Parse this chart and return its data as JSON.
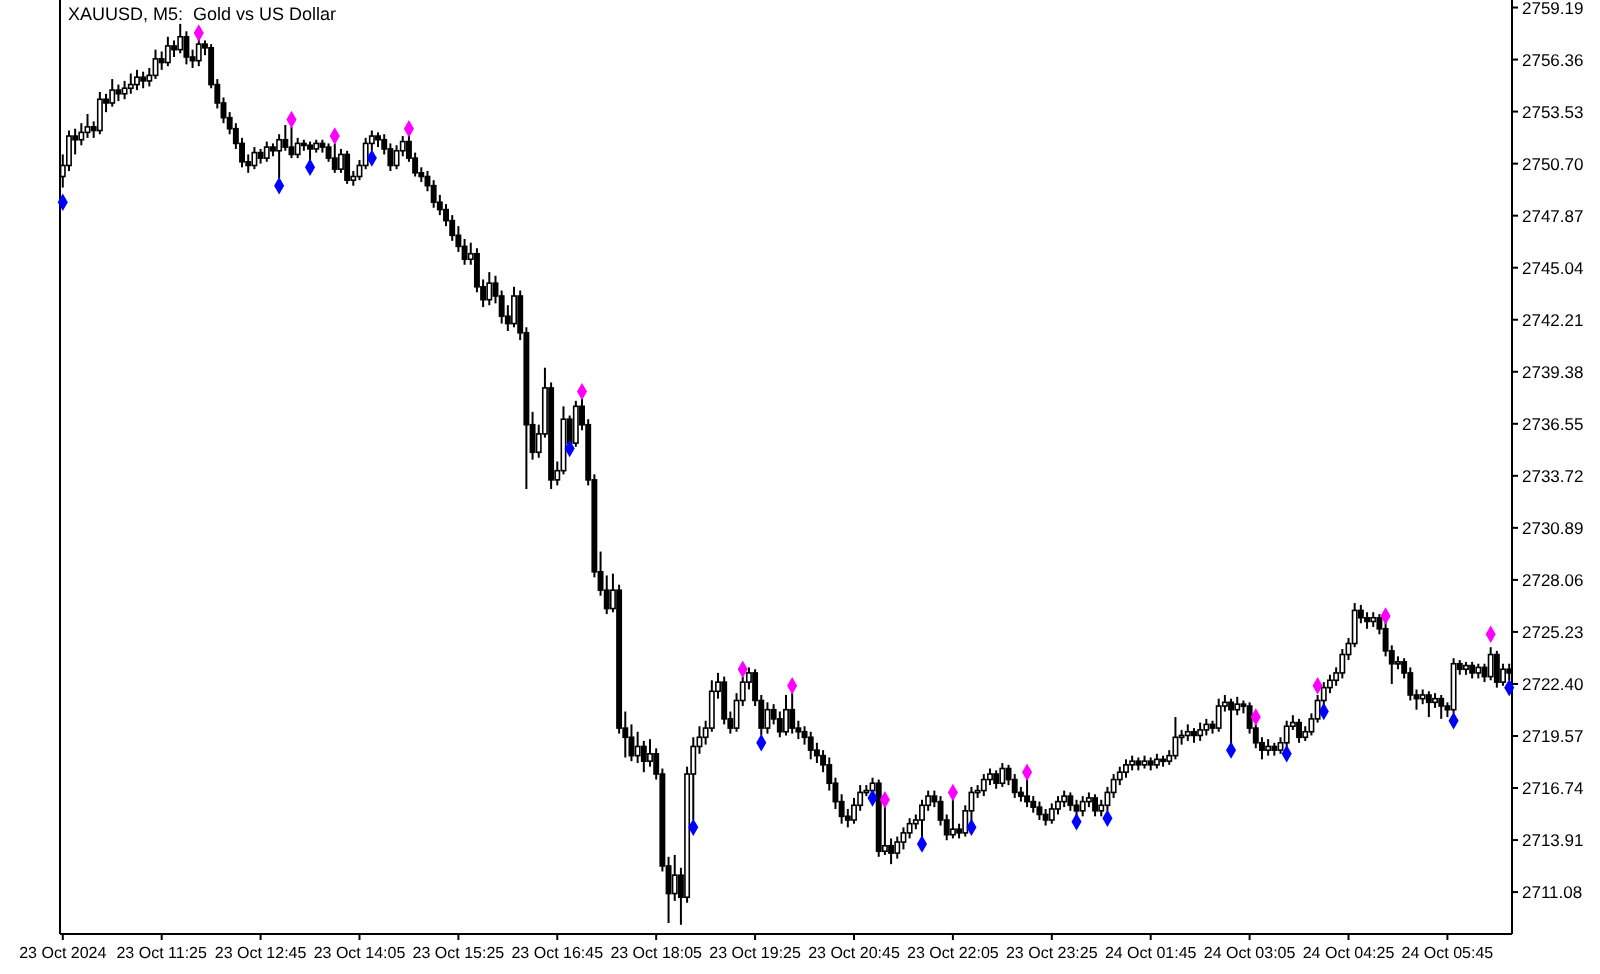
{
  "chart_data": {
    "type": "candlestick",
    "title": "XAUUSD, M5:  Gold vs US Dollar",
    "marker": "diamond",
    "categories": [
      "23 Oct 2024",
      null,
      null,
      null,
      null,
      null,
      null,
      null,
      null,
      null,
      null,
      null,
      null,
      null,
      null,
      null,
      "23 Oct 11:25",
      null,
      null,
      null,
      null,
      null,
      null,
      null,
      null,
      null,
      null,
      null,
      null,
      null,
      null,
      null,
      "23 Oct 12:45",
      null,
      null,
      null,
      null,
      null,
      null,
      null,
      null,
      null,
      null,
      null,
      null,
      null,
      null,
      null,
      "23 Oct 14:05",
      null,
      null,
      null,
      null,
      null,
      null,
      null,
      null,
      null,
      null,
      null,
      null,
      null,
      null,
      null,
      "23 Oct 15:25",
      null,
      null,
      null,
      null,
      null,
      null,
      null,
      null,
      null,
      null,
      null,
      null,
      null,
      null,
      null,
      "23 Oct 16:45",
      null,
      null,
      null,
      null,
      null,
      null,
      null,
      null,
      null,
      null,
      null,
      null,
      null,
      null,
      null,
      "23 Oct 18:05",
      null,
      null,
      null,
      null,
      null,
      null,
      null,
      null,
      null,
      null,
      null,
      null,
      null,
      null,
      null,
      "23 Oct 19:25",
      null,
      null,
      null,
      null,
      null,
      null,
      null,
      null,
      null,
      null,
      null,
      null,
      null,
      null,
      null,
      "23 Oct 20:45",
      null,
      null,
      null,
      null,
      null,
      null,
      null,
      null,
      null,
      null,
      null,
      null,
      null,
      null,
      null,
      "23 Oct 22:05",
      null,
      null,
      null,
      null,
      null,
      null,
      null,
      null,
      null,
      null,
      null,
      null,
      null,
      null,
      null,
      "23 Oct 23:25",
      null,
      null,
      null,
      null,
      null,
      null,
      null,
      null,
      null,
      null,
      null,
      null,
      null,
      null,
      null,
      "24 Oct 01:45",
      null,
      null,
      null,
      null,
      null,
      null,
      null,
      null,
      null,
      null,
      null,
      null,
      null,
      null,
      null,
      "24 Oct 03:05",
      null,
      null,
      null,
      null,
      null,
      null,
      null,
      null,
      null,
      null,
      null,
      null,
      null,
      null,
      null,
      "24 Oct 04:25",
      null,
      null,
      null,
      null,
      null,
      null,
      null,
      null,
      null,
      null,
      null,
      null,
      null,
      null,
      null,
      "24 Oct 05:45",
      null,
      null,
      null,
      null,
      null,
      null,
      null,
      null,
      null,
      null
    ],
    "ohlc": [
      [
        2750.0,
        2751.2,
        2749.4,
        2750.6
      ],
      [
        2750.6,
        2752.5,
        2750.3,
        2752.2
      ],
      [
        2752.2,
        2752.6,
        2751.2,
        2752.0
      ],
      [
        2752.0,
        2752.9,
        2751.7,
        2752.4
      ],
      [
        2752.4,
        2753.4,
        2752.1,
        2752.7
      ],
      [
        2752.7,
        2753.0,
        2752.1,
        2752.5
      ],
      [
        2752.5,
        2754.6,
        2752.3,
        2754.2
      ],
      [
        2754.2,
        2754.5,
        2753.5,
        2754.0
      ],
      [
        2754.0,
        2755.3,
        2753.8,
        2754.7
      ],
      [
        2754.7,
        2755.0,
        2754.1,
        2754.5
      ],
      [
        2754.5,
        2755.2,
        2754.2,
        2754.8
      ],
      [
        2754.8,
        2755.6,
        2754.5,
        2755.0
      ],
      [
        2755.0,
        2755.8,
        2754.7,
        2755.4
      ],
      [
        2755.4,
        2755.7,
        2754.8,
        2755.2
      ],
      [
        2755.2,
        2755.9,
        2754.9,
        2755.5
      ],
      [
        2755.5,
        2756.9,
        2755.3,
        2756.4
      ],
      [
        2756.4,
        2756.8,
        2755.8,
        2756.2
      ],
      [
        2756.2,
        2757.6,
        2756.0,
        2757.1
      ],
      [
        2757.1,
        2757.4,
        2756.5,
        2756.9
      ],
      [
        2756.9,
        2758.3,
        2756.7,
        2757.6
      ],
      [
        2757.6,
        2757.9,
        2756.1,
        2756.5
      ],
      [
        2756.5,
        2756.9,
        2755.9,
        2756.3
      ],
      [
        2756.3,
        2757.5,
        2756.0,
        2757.2
      ],
      [
        2757.2,
        2757.4,
        2756.6,
        2757.0
      ],
      [
        2757.0,
        2757.2,
        2754.8,
        2755.0
      ],
      [
        2755.0,
        2755.3,
        2753.7,
        2754.0
      ],
      [
        2754.0,
        2754.3,
        2752.9,
        2753.2
      ],
      [
        2753.2,
        2753.5,
        2752.3,
        2752.6
      ],
      [
        2752.6,
        2752.9,
        2751.5,
        2751.8
      ],
      [
        2751.8,
        2752.1,
        2750.5,
        2750.8
      ],
      [
        2750.8,
        2751.2,
        2750.2,
        2750.6
      ],
      [
        2750.6,
        2751.6,
        2750.4,
        2751.3
      ],
      [
        2751.3,
        2751.5,
        2750.7,
        2751.0
      ],
      [
        2751.0,
        2751.9,
        2750.8,
        2751.6
      ],
      [
        2751.6,
        2751.8,
        2751.1,
        2751.4
      ],
      [
        2751.4,
        2752.3,
        2749.9,
        2752.0
      ],
      [
        2752.0,
        2752.8,
        2751.4,
        2751.6
      ],
      [
        2751.6,
        2752.7,
        2751.0,
        2751.2
      ],
      [
        2751.2,
        2752.1,
        2751.0,
        2751.8
      ],
      [
        2751.8,
        2752.0,
        2751.4,
        2751.7
      ],
      [
        2751.7,
        2751.9,
        2750.9,
        2751.5
      ],
      [
        2751.5,
        2752.0,
        2751.3,
        2751.8
      ],
      [
        2751.8,
        2752.0,
        2751.3,
        2751.6
      ],
      [
        2751.6,
        2751.8,
        2750.8,
        2751.0
      ],
      [
        2751.0,
        2751.8,
        2750.2,
        2750.4
      ],
      [
        2750.4,
        2751.5,
        2750.2,
        2751.2
      ],
      [
        2751.2,
        2751.4,
        2749.6,
        2749.8
      ],
      [
        2749.8,
        2750.3,
        2749.5,
        2750.0
      ],
      [
        2750.0,
        2750.9,
        2749.8,
        2750.6
      ],
      [
        2750.6,
        2752.1,
        2750.4,
        2751.8
      ],
      [
        2751.8,
        2752.5,
        2751.4,
        2752.2
      ],
      [
        2752.2,
        2752.4,
        2751.6,
        2752.0
      ],
      [
        2752.0,
        2752.3,
        2751.2,
        2751.5
      ],
      [
        2751.5,
        2751.8,
        2750.3,
        2750.6
      ],
      [
        2750.6,
        2751.7,
        2750.4,
        2751.4
      ],
      [
        2751.4,
        2752.2,
        2751.1,
        2751.9
      ],
      [
        2751.9,
        2752.3,
        2750.8,
        2751.0
      ],
      [
        2751.0,
        2751.3,
        2750.0,
        2750.2
      ],
      [
        2750.2,
        2750.5,
        2749.7,
        2750.0
      ],
      [
        2750.0,
        2750.3,
        2749.2,
        2749.5
      ],
      [
        2749.5,
        2749.8,
        2748.3,
        2748.6
      ],
      [
        2748.6,
        2749.0,
        2747.9,
        2748.2
      ],
      [
        2748.2,
        2748.5,
        2747.3,
        2747.6
      ],
      [
        2747.6,
        2747.9,
        2746.5,
        2746.8
      ],
      [
        2746.8,
        2747.3,
        2745.9,
        2746.2
      ],
      [
        2746.2,
        2746.6,
        2745.2,
        2745.5
      ],
      [
        2745.5,
        2746.4,
        2745.2,
        2745.8
      ],
      [
        2745.8,
        2746.1,
        2743.7,
        2744.0
      ],
      [
        2744.0,
        2744.4,
        2742.9,
        2743.3
      ],
      [
        2743.3,
        2744.8,
        2743.0,
        2744.2
      ],
      [
        2744.2,
        2744.6,
        2743.1,
        2743.5
      ],
      [
        2743.5,
        2743.8,
        2742.0,
        2742.4
      ],
      [
        2742.4,
        2743.0,
        2741.6,
        2742.0
      ],
      [
        2742.0,
        2744.0,
        2741.8,
        2743.5
      ],
      [
        2743.5,
        2743.8,
        2741.1,
        2741.5
      ],
      [
        2741.5,
        2741.8,
        2733.0,
        2736.5
      ],
      [
        2736.5,
        2737.2,
        2734.6,
        2735.0
      ],
      [
        2735.0,
        2736.5,
        2734.7,
        2736.0
      ],
      [
        2736.0,
        2739.6,
        2735.8,
        2738.5
      ],
      [
        2738.5,
        2738.8,
        2733.0,
        2733.5
      ],
      [
        2733.5,
        2734.5,
        2733.2,
        2734.0
      ],
      [
        2734.0,
        2737.5,
        2733.8,
        2736.8
      ],
      [
        2736.8,
        2737.0,
        2735.4,
        2735.5
      ],
      [
        2735.5,
        2737.8,
        2735.3,
        2737.5
      ],
      [
        2737.5,
        2737.9,
        2736.2,
        2736.5
      ],
      [
        2736.5,
        2736.8,
        2733.2,
        2733.5
      ],
      [
        2733.5,
        2733.8,
        2728.2,
        2728.5
      ],
      [
        2728.5,
        2729.6,
        2727.2,
        2727.5
      ],
      [
        2727.5,
        2728.3,
        2726.2,
        2726.5
      ],
      [
        2726.5,
        2728.4,
        2726.3,
        2727.5
      ],
      [
        2727.5,
        2727.8,
        2719.7,
        2720.0
      ],
      [
        2720.0,
        2720.9,
        2718.4,
        2719.5
      ],
      [
        2719.5,
        2720.2,
        2718.2,
        2718.5
      ],
      [
        2718.5,
        2719.8,
        2718.1,
        2719.0
      ],
      [
        2719.0,
        2719.3,
        2717.6,
        2718.2
      ],
      [
        2718.2,
        2719.4,
        2717.9,
        2718.6
      ],
      [
        2718.6,
        2718.9,
        2717.2,
        2717.5
      ],
      [
        2717.5,
        2717.8,
        2712.2,
        2712.5
      ],
      [
        2712.5,
        2713.0,
        2709.4,
        2711.0
      ],
      [
        2711.0,
        2713.1,
        2710.6,
        2712.0
      ],
      [
        2712.0,
        2712.4,
        2709.3,
        2710.8
      ],
      [
        2710.8,
        2717.9,
        2710.5,
        2717.5
      ],
      [
        2717.5,
        2719.5,
        2715.0,
        2719.0
      ],
      [
        2719.0,
        2720.1,
        2718.6,
        2719.5
      ],
      [
        2719.5,
        2720.4,
        2719.1,
        2720.0
      ],
      [
        2720.0,
        2722.6,
        2719.8,
        2722.0
      ],
      [
        2722.0,
        2723.0,
        2721.6,
        2722.5
      ],
      [
        2722.5,
        2722.8,
        2720.2,
        2720.5
      ],
      [
        2720.5,
        2720.9,
        2719.7,
        2720.0
      ],
      [
        2720.0,
        2721.9,
        2719.8,
        2721.5
      ],
      [
        2721.5,
        2722.8,
        2721.2,
        2722.5
      ],
      [
        2722.5,
        2723.3,
        2722.1,
        2723.0
      ],
      [
        2723.0,
        2723.2,
        2721.2,
        2721.5
      ],
      [
        2721.5,
        2721.8,
        2719.6,
        2720.0
      ],
      [
        2720.0,
        2721.4,
        2719.7,
        2721.0
      ],
      [
        2721.0,
        2721.3,
        2720.2,
        2720.5
      ],
      [
        2720.5,
        2720.9,
        2719.5,
        2719.8
      ],
      [
        2719.8,
        2721.8,
        2719.6,
        2721.0
      ],
      [
        2721.0,
        2721.9,
        2719.7,
        2720.0
      ],
      [
        2720.0,
        2720.4,
        2719.4,
        2719.8
      ],
      [
        2719.8,
        2720.1,
        2719.1,
        2719.5
      ],
      [
        2719.5,
        2719.8,
        2718.3,
        2718.8
      ],
      [
        2718.8,
        2719.2,
        2718.1,
        2718.5
      ],
      [
        2718.5,
        2718.8,
        2717.6,
        2718.0
      ],
      [
        2718.0,
        2718.4,
        2716.6,
        2717.0
      ],
      [
        2717.0,
        2717.3,
        2715.6,
        2716.0
      ],
      [
        2716.0,
        2716.4,
        2714.8,
        2715.2
      ],
      [
        2715.2,
        2715.6,
        2714.6,
        2715.0
      ],
      [
        2715.0,
        2716.2,
        2714.8,
        2715.8
      ],
      [
        2715.8,
        2716.9,
        2715.5,
        2716.5
      ],
      [
        2716.5,
        2716.9,
        2716.3,
        2716.6
      ],
      [
        2716.6,
        2717.3,
        2716.4,
        2717.0
      ],
      [
        2717.0,
        2717.2,
        2713.0,
        2713.3
      ],
      [
        2713.3,
        2715.9,
        2713.1,
        2713.6
      ],
      [
        2713.6,
        2714.0,
        2712.6,
        2713.2
      ],
      [
        2713.2,
        2714.1,
        2712.9,
        2713.8
      ],
      [
        2713.8,
        2714.6,
        2713.4,
        2714.3
      ],
      [
        2714.3,
        2715.1,
        2714.0,
        2714.8
      ],
      [
        2714.8,
        2715.3,
        2714.5,
        2715.0
      ],
      [
        2715.0,
        2716.1,
        2714.0,
        2715.8
      ],
      [
        2715.8,
        2716.6,
        2715.5,
        2716.3
      ],
      [
        2716.3,
        2716.6,
        2715.7,
        2716.0
      ],
      [
        2716.0,
        2716.3,
        2714.7,
        2715.0
      ],
      [
        2715.0,
        2715.3,
        2713.9,
        2714.2
      ],
      [
        2714.2,
        2716.2,
        2714.0,
        2714.5
      ],
      [
        2714.5,
        2714.8,
        2714.0,
        2714.3
      ],
      [
        2714.3,
        2715.8,
        2714.1,
        2715.5
      ],
      [
        2715.5,
        2716.8,
        2714.9,
        2716.5
      ],
      [
        2716.5,
        2716.9,
        2716.2,
        2716.6
      ],
      [
        2716.6,
        2717.5,
        2716.3,
        2717.2
      ],
      [
        2717.2,
        2717.8,
        2716.9,
        2717.5
      ],
      [
        2717.5,
        2717.7,
        2716.7,
        2717.0
      ],
      [
        2717.0,
        2718.1,
        2716.8,
        2717.8
      ],
      [
        2717.8,
        2718.0,
        2716.9,
        2717.2
      ],
      [
        2717.2,
        2717.5,
        2716.2,
        2716.5
      ],
      [
        2716.5,
        2716.8,
        2716.0,
        2716.3
      ],
      [
        2716.3,
        2717.3,
        2715.7,
        2716.0
      ],
      [
        2716.0,
        2716.3,
        2715.4,
        2715.7
      ],
      [
        2715.7,
        2716.0,
        2715.0,
        2715.3
      ],
      [
        2715.3,
        2715.6,
        2714.7,
        2715.0
      ],
      [
        2715.0,
        2715.9,
        2714.8,
        2715.6
      ],
      [
        2715.6,
        2716.3,
        2715.3,
        2716.0
      ],
      [
        2716.0,
        2716.6,
        2715.7,
        2716.3
      ],
      [
        2716.3,
        2716.5,
        2715.5,
        2715.8
      ],
      [
        2715.8,
        2716.1,
        2715.2,
        2715.5
      ],
      [
        2715.5,
        2716.3,
        2715.2,
        2716.0
      ],
      [
        2716.0,
        2716.5,
        2715.7,
        2716.2
      ],
      [
        2716.2,
        2716.4,
        2715.2,
        2715.5
      ],
      [
        2715.5,
        2716.1,
        2715.2,
        2715.8
      ],
      [
        2715.8,
        2716.8,
        2715.5,
        2716.5
      ],
      [
        2716.5,
        2717.5,
        2716.2,
        2717.2
      ],
      [
        2717.2,
        2717.9,
        2716.9,
        2717.6
      ],
      [
        2717.6,
        2718.3,
        2717.3,
        2718.0
      ],
      [
        2718.0,
        2718.5,
        2717.7,
        2718.2
      ],
      [
        2718.2,
        2718.4,
        2717.7,
        2718.0
      ],
      [
        2718.0,
        2718.5,
        2717.8,
        2718.2
      ],
      [
        2718.2,
        2718.4,
        2717.7,
        2718.0
      ],
      [
        2718.0,
        2718.6,
        2717.8,
        2718.3
      ],
      [
        2718.3,
        2718.5,
        2717.9,
        2718.2
      ],
      [
        2718.2,
        2718.8,
        2718.0,
        2718.5
      ],
      [
        2718.5,
        2720.6,
        2718.3,
        2719.5
      ],
      [
        2719.5,
        2719.9,
        2719.1,
        2719.6
      ],
      [
        2719.6,
        2720.2,
        2719.3,
        2719.8
      ],
      [
        2719.8,
        2720.0,
        2719.2,
        2719.6
      ],
      [
        2719.6,
        2720.3,
        2719.3,
        2719.9
      ],
      [
        2719.9,
        2720.5,
        2719.6,
        2720.2
      ],
      [
        2720.2,
        2720.4,
        2719.7,
        2720.0
      ],
      [
        2720.0,
        2721.6,
        2719.8,
        2721.2
      ],
      [
        2721.2,
        2721.8,
        2720.9,
        2721.4
      ],
      [
        2721.4,
        2721.6,
        2719.1,
        2721.0
      ],
      [
        2721.0,
        2721.7,
        2720.7,
        2721.3
      ],
      [
        2721.3,
        2721.5,
        2720.8,
        2721.2
      ],
      [
        2721.2,
        2721.4,
        2719.7,
        2720.0
      ],
      [
        2720.0,
        2720.2,
        2718.9,
        2719.2
      ],
      [
        2719.2,
        2719.5,
        2718.3,
        2718.8
      ],
      [
        2718.8,
        2719.4,
        2718.5,
        2719.0
      ],
      [
        2719.0,
        2719.2,
        2718.5,
        2718.8
      ],
      [
        2718.8,
        2719.5,
        2718.6,
        2719.2
      ],
      [
        2719.2,
        2720.4,
        2718.9,
        2720.1
      ],
      [
        2720.1,
        2720.7,
        2719.9,
        2720.3
      ],
      [
        2720.3,
        2720.5,
        2719.2,
        2719.5
      ],
      [
        2719.5,
        2720.1,
        2719.3,
        2719.8
      ],
      [
        2719.8,
        2720.8,
        2719.6,
        2720.5
      ],
      [
        2720.5,
        2721.8,
        2720.3,
        2721.5
      ],
      [
        2721.5,
        2722.5,
        2721.2,
        2722.2
      ],
      [
        2722.2,
        2722.9,
        2721.9,
        2722.6
      ],
      [
        2722.6,
        2723.3,
        2722.3,
        2723.0
      ],
      [
        2723.0,
        2724.3,
        2722.7,
        2724.0
      ],
      [
        2724.0,
        2724.9,
        2723.7,
        2724.6
      ],
      [
        2724.6,
        2726.8,
        2724.4,
        2726.4
      ],
      [
        2726.4,
        2726.7,
        2725.7,
        2726.0
      ],
      [
        2726.0,
        2726.3,
        2725.4,
        2725.8
      ],
      [
        2725.8,
        2726.3,
        2725.5,
        2726.0
      ],
      [
        2726.0,
        2726.2,
        2725.1,
        2725.4
      ],
      [
        2725.4,
        2725.8,
        2723.9,
        2724.2
      ],
      [
        2724.2,
        2724.5,
        2722.4,
        2723.5
      ],
      [
        2723.5,
        2723.9,
        2723.2,
        2723.6
      ],
      [
        2723.6,
        2723.8,
        2722.7,
        2723.0
      ],
      [
        2723.0,
        2723.3,
        2721.5,
        2721.8
      ],
      [
        2721.8,
        2722.1,
        2721.0,
        2721.6
      ],
      [
        2721.6,
        2722.1,
        2721.3,
        2721.8
      ],
      [
        2721.8,
        2722.0,
        2720.6,
        2721.4
      ],
      [
        2721.4,
        2721.9,
        2721.1,
        2721.6
      ],
      [
        2721.6,
        2721.8,
        2720.5,
        2721.2
      ],
      [
        2721.2,
        2721.4,
        2720.6,
        2721.0
      ],
      [
        2721.0,
        2723.8,
        2720.8,
        2723.5
      ],
      [
        2723.5,
        2723.7,
        2722.9,
        2723.2
      ],
      [
        2723.2,
        2723.6,
        2722.9,
        2723.4
      ],
      [
        2723.4,
        2723.6,
        2722.7,
        2723.0
      ],
      [
        2723.0,
        2723.5,
        2722.7,
        2723.3
      ],
      [
        2723.3,
        2723.5,
        2722.5,
        2722.8
      ],
      [
        2722.8,
        2724.4,
        2722.6,
        2724.0
      ],
      [
        2724.0,
        2724.2,
        2722.2,
        2722.5
      ],
      [
        2722.5,
        2723.5,
        2722.3,
        2723.2
      ],
      [
        2723.2,
        2723.5,
        2722.6,
        2723.0
      ]
    ],
    "series": [
      {
        "type": "scatter",
        "color": "#ff00ff",
        "values": [
          null,
          null,
          null,
          null,
          null,
          null,
          null,
          null,
          null,
          null,
          null,
          null,
          null,
          null,
          null,
          null,
          null,
          null,
          null,
          null,
          null,
          null,
          2757.8,
          null,
          null,
          null,
          null,
          null,
          null,
          null,
          null,
          null,
          null,
          null,
          null,
          null,
          null,
          2753.1,
          null,
          null,
          null,
          null,
          null,
          null,
          2752.2,
          null,
          null,
          null,
          null,
          null,
          null,
          null,
          null,
          null,
          null,
          null,
          2752.6,
          null,
          null,
          null,
          null,
          null,
          null,
          null,
          null,
          null,
          null,
          null,
          null,
          null,
          null,
          null,
          null,
          null,
          null,
          null,
          null,
          null,
          null,
          null,
          null,
          null,
          null,
          null,
          2738.3,
          null,
          null,
          null,
          null,
          null,
          null,
          null,
          null,
          null,
          null,
          null,
          null,
          null,
          null,
          null,
          null,
          null,
          null,
          null,
          null,
          null,
          null,
          null,
          null,
          null,
          2723.2,
          null,
          null,
          null,
          null,
          null,
          null,
          null,
          2722.3,
          null,
          null,
          null,
          null,
          null,
          null,
          null,
          null,
          null,
          null,
          null,
          null,
          null,
          null,
          2716.1,
          null,
          null,
          null,
          null,
          null,
          null,
          null,
          null,
          null,
          null,
          2716.5,
          null,
          null,
          null,
          null,
          null,
          null,
          null,
          null,
          null,
          null,
          null,
          2717.6,
          null,
          null,
          null,
          null,
          null,
          null,
          null,
          null,
          null,
          null,
          null,
          null,
          null,
          null,
          null,
          null,
          null,
          null,
          null,
          null,
          null,
          null,
          null,
          null,
          null,
          null,
          null,
          null,
          null,
          null,
          null,
          null,
          null,
          null,
          null,
          null,
          2720.6,
          null,
          null,
          null,
          null,
          null,
          null,
          null,
          null,
          null,
          2722.3,
          null,
          null,
          null,
          null,
          null,
          null,
          null,
          null,
          null,
          null,
          2726.1,
          null,
          null,
          null,
          null,
          null,
          null,
          null,
          null,
          null,
          null,
          null,
          null,
          null,
          null,
          null,
          null,
          2725.1,
          null,
          null,
          null
        ]
      },
      {
        "type": "scatter",
        "color": "#0000ff",
        "values": [
          2748.6,
          null,
          null,
          null,
          null,
          null,
          null,
          null,
          null,
          null,
          null,
          null,
          null,
          null,
          null,
          null,
          null,
          null,
          null,
          null,
          null,
          null,
          null,
          null,
          null,
          null,
          null,
          null,
          null,
          null,
          null,
          null,
          null,
          null,
          null,
          2749.5,
          null,
          null,
          null,
          null,
          2750.5,
          null,
          null,
          null,
          null,
          null,
          null,
          null,
          null,
          null,
          2751.0,
          null,
          null,
          null,
          null,
          null,
          null,
          null,
          null,
          null,
          null,
          null,
          null,
          null,
          null,
          null,
          null,
          null,
          null,
          null,
          null,
          null,
          null,
          null,
          null,
          null,
          null,
          null,
          null,
          null,
          null,
          null,
          2735.2,
          null,
          null,
          null,
          null,
          null,
          null,
          null,
          null,
          null,
          null,
          null,
          null,
          null,
          null,
          null,
          null,
          null,
          null,
          null,
          2714.6,
          null,
          null,
          null,
          null,
          null,
          null,
          null,
          null,
          null,
          null,
          2719.2,
          null,
          null,
          null,
          null,
          null,
          null,
          null,
          null,
          null,
          null,
          null,
          null,
          null,
          null,
          null,
          null,
          null,
          2716.2,
          null,
          null,
          null,
          null,
          null,
          null,
          null,
          2713.7,
          null,
          null,
          null,
          null,
          null,
          null,
          null,
          2714.6,
          null,
          null,
          null,
          null,
          null,
          null,
          null,
          null,
          null,
          null,
          null,
          null,
          null,
          null,
          null,
          null,
          2714.9,
          null,
          null,
          null,
          null,
          2715.1,
          null,
          null,
          null,
          null,
          null,
          null,
          null,
          null,
          null,
          null,
          null,
          null,
          null,
          null,
          null,
          null,
          null,
          null,
          null,
          2718.8,
          null,
          null,
          null,
          null,
          null,
          null,
          null,
          null,
          2718.6,
          null,
          null,
          null,
          null,
          null,
          2720.9,
          null,
          null,
          null,
          null,
          null,
          null,
          null,
          null,
          null,
          null,
          null,
          null,
          null,
          null,
          null,
          null,
          null,
          null,
          null,
          null,
          2720.4,
          null,
          null,
          null,
          null,
          null,
          null,
          null,
          null,
          2722.2
        ]
      }
    ],
    "ylim": [
      2708.8,
      2759.6
    ],
    "yticks": [
      2711.08,
      2713.91,
      2716.74,
      2719.57,
      {
        "value": 2722.4,
        "label": "2722.40"
      },
      2725.23,
      2728.06,
      2730.89,
      2733.72,
      2736.55,
      2739.38,
      2742.21,
      2745.04,
      2747.87,
      {
        "value": 2750.7,
        "label": "2750.70"
      },
      2753.53,
      2756.36,
      2759.19
    ]
  }
}
